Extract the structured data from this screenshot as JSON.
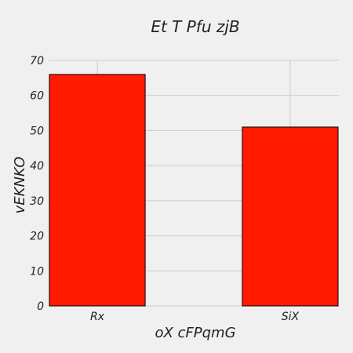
{
  "chart_data": {
    "type": "bar",
    "title": "Et T  Pfu zjB",
    "xlabel": "oX  cFPqmG",
    "ylabel": "vEKNKO",
    "categories": [
      "Rx",
      "SiX"
    ],
    "values": [
      66,
      51
    ],
    "ylim": [
      0,
      70
    ],
    "yticks": [
      0,
      10,
      20,
      30,
      40,
      50,
      60,
      70
    ],
    "grid": true,
    "legend": "none",
    "colors": {
      "bar": "#ff1a00",
      "background": "#f0f0f0",
      "grid": "#cbcbcb"
    }
  }
}
